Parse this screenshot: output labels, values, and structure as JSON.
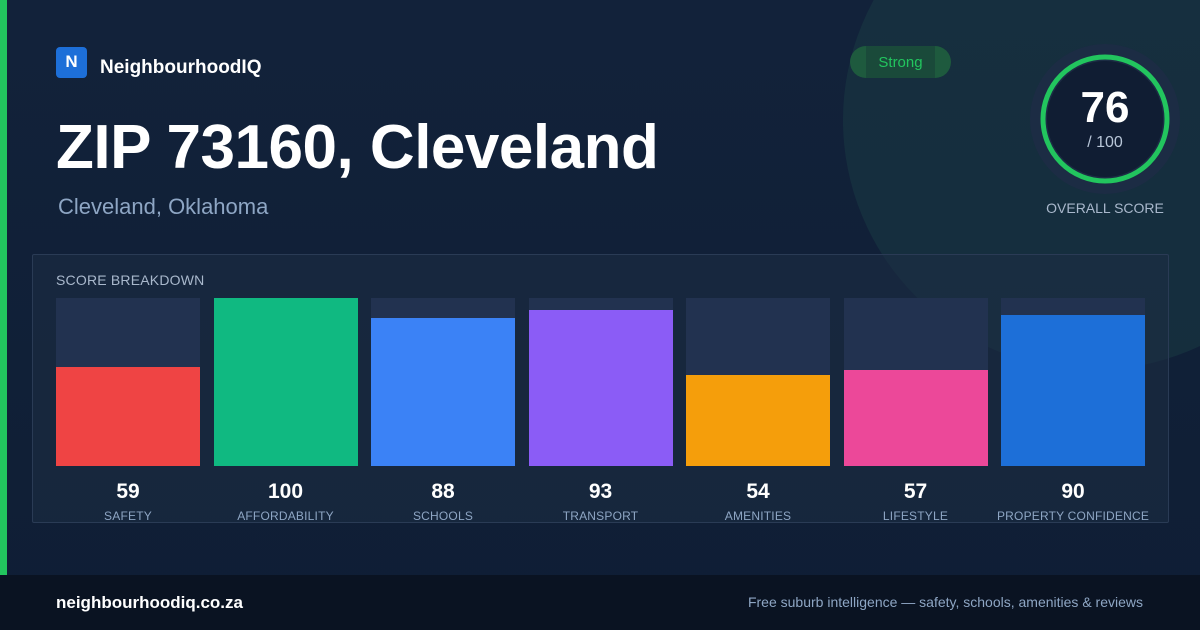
{
  "brand": {
    "logo_letter": "N",
    "name": "NeighbourhoodIQ"
  },
  "badge": {
    "label": "Strong",
    "color": "#22c55e"
  },
  "header": {
    "title": "ZIP 73160, Cleveland",
    "subtitle": "Cleveland, Oklahoma"
  },
  "overall": {
    "value": "76",
    "max_label": "/ 100",
    "caption": "OVERALL SCORE",
    "score": 76,
    "max": 100,
    "ring_color": "#22c55e"
  },
  "breakdown": {
    "label": "SCORE BREAKDOWN"
  },
  "chart_data": {
    "type": "bar",
    "categories": [
      "SAFETY",
      "AFFORDABILITY",
      "SCHOOLS",
      "TRANSPORT",
      "AMENITIES",
      "LIFESTYLE",
      "PROPERTY CONFIDENCE"
    ],
    "values": [
      59,
      100,
      88,
      93,
      54,
      57,
      90
    ],
    "colors": [
      "#ef4444",
      "#10b981",
      "#3b82f6",
      "#8b5cf6",
      "#f59e0b",
      "#ec4899",
      "#1d6fd8"
    ],
    "ylim": [
      0,
      100
    ],
    "grid": false,
    "legend": "none"
  },
  "footer": {
    "domain": "neighbourhoodiq.co.za",
    "tagline": "Free suburb intelligence — safety, schools, amenities & reviews"
  }
}
